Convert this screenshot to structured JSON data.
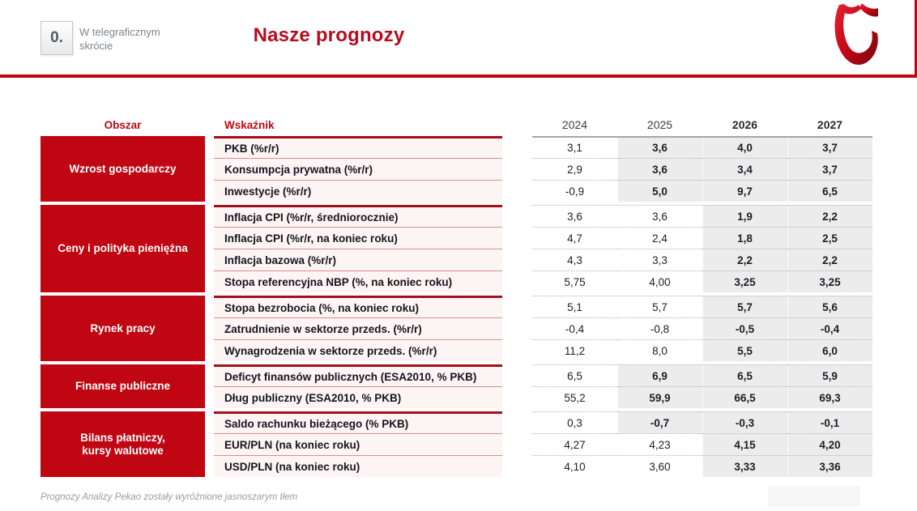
{
  "header": {
    "section_number": "0.",
    "section_label_line1": "W telegraficznym",
    "section_label_line2": "skrócie",
    "title": "Nasze prognozy"
  },
  "table": {
    "area_header": "Obszar",
    "indicator_header": "Wskaźnik",
    "years": [
      {
        "label": "2024",
        "forecast": false
      },
      {
        "label": "2025",
        "forecast": false
      },
      {
        "label": "2026",
        "forecast": true
      },
      {
        "label": "2027",
        "forecast": true
      }
    ],
    "groups": [
      {
        "area": "Wzrost gospodarczy",
        "rows": [
          {
            "indicator": "PKB (%r/r)",
            "values": [
              "3,1",
              "3,6",
              "4,0",
              "3,7"
            ],
            "forecast_from": 1
          },
          {
            "indicator": "Konsumpcja prywatna (%r/r)",
            "values": [
              "2,9",
              "3,6",
              "3,4",
              "3,7"
            ],
            "forecast_from": 1
          },
          {
            "indicator": "Inwestycje (%r/r)",
            "values": [
              "-0,9",
              "5,0",
              "9,7",
              "6,5"
            ],
            "forecast_from": 1
          }
        ]
      },
      {
        "area": "Ceny i polityka pieniężna",
        "rows": [
          {
            "indicator": "Inflacja CPI (%r/r, średniorocznie)",
            "values": [
              "3,6",
              "3,6",
              "1,9",
              "2,2"
            ],
            "forecast_from": 2
          },
          {
            "indicator": "Inflacja CPI (%r/r, na koniec roku)",
            "values": [
              "4,7",
              "2,4",
              "1,8",
              "2,5"
            ],
            "forecast_from": 2
          },
          {
            "indicator": "Inflacja bazowa (%r/r)",
            "values": [
              "4,3",
              "3,3",
              "2,2",
              "2,2"
            ],
            "forecast_from": 2
          },
          {
            "indicator": "Stopa referencyjna NBP (%, na koniec roku)",
            "values": [
              "5,75",
              "4,00",
              "3,25",
              "3,25"
            ],
            "forecast_from": 2
          }
        ]
      },
      {
        "area": "Rynek pracy",
        "rows": [
          {
            "indicator": "Stopa bezrobocia (%, na koniec roku)",
            "values": [
              "5,1",
              "5,7",
              "5,7",
              "5,6"
            ],
            "forecast_from": 2
          },
          {
            "indicator": "Zatrudnienie w sektorze przeds. (%r/r)",
            "values": [
              "-0,4",
              "-0,8",
              "-0,5",
              "-0,4"
            ],
            "forecast_from": 2
          },
          {
            "indicator": "Wynagrodzenia w sektorze przeds. (%r/r)",
            "values": [
              "11,2",
              "8,0",
              "5,5",
              "6,0"
            ],
            "forecast_from": 2
          }
        ]
      },
      {
        "area": "Finanse publiczne",
        "rows": [
          {
            "indicator": "Deficyt finansów publicznych (ESA2010, % PKB)",
            "values": [
              "6,5",
              "6,9",
              "6,5",
              "5,9"
            ],
            "forecast_from": 1
          },
          {
            "indicator": "Dług publiczny (ESA2010, % PKB)",
            "values": [
              "55,2",
              "59,9",
              "66,5",
              "69,3"
            ],
            "forecast_from": 1
          }
        ]
      },
      {
        "area": "Bilans płatniczy,\nkursy walutowe",
        "rows": [
          {
            "indicator": "Saldo rachunku bieżącego (% PKB)",
            "values": [
              "0,3",
              "-0,7",
              "-0,3",
              "-0,1"
            ],
            "forecast_from": 1
          },
          {
            "indicator": "EUR/PLN (na koniec roku)",
            "values": [
              "4,27",
              "4,23",
              "4,15",
              "4,20"
            ],
            "forecast_from": 2
          },
          {
            "indicator": "USD/PLN (na koniec roku)",
            "values": [
              "4,10",
              "3,60",
              "3,33",
              "3,36"
            ],
            "forecast_from": 2
          }
        ]
      }
    ]
  },
  "footnote": "Prognozy Analizy Pekao zostały wyróżnione jasnoszarym tłem",
  "colors": {
    "brand_red": "#c00612",
    "title_red": "#b60d1e",
    "dark_red_border": "#a31019",
    "row_pink": "#fdf4f4",
    "highlight_gray": "#ececec"
  }
}
